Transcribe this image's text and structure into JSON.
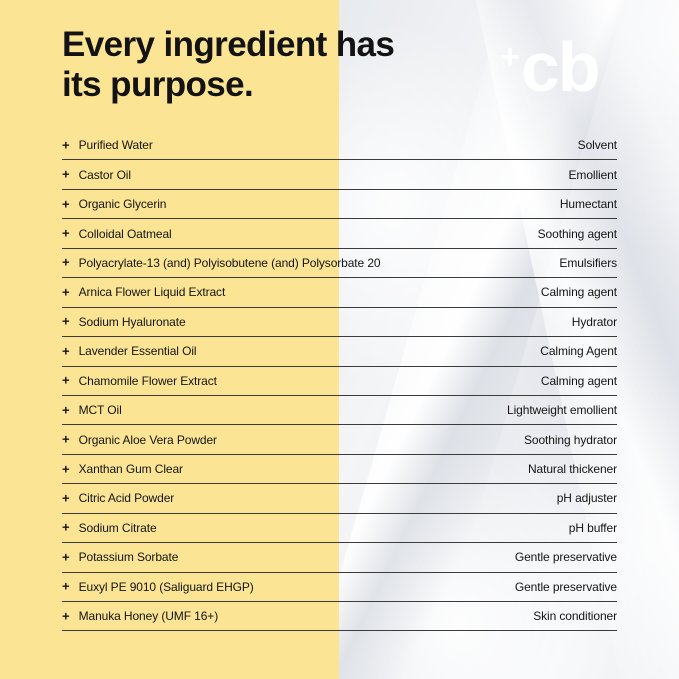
{
  "header": {
    "title_line1": "Every ingredient has",
    "title_line2": "its purpose.",
    "logo_plus": "+",
    "logo_text": "cb"
  },
  "colors": {
    "accent_yellow": "#FBE494",
    "text": "#141414",
    "divider": "#3B3B3B",
    "background_right": "#EDEFF2",
    "logo": "#FFFFFF"
  },
  "table": {
    "row_marker": "+",
    "rows": [
      {
        "ingredient": "Purified Water",
        "purpose": "Solvent"
      },
      {
        "ingredient": "Castor Oil",
        "purpose": "Emollient"
      },
      {
        "ingredient": "Organic Glycerin",
        "purpose": "Humectant"
      },
      {
        "ingredient": "Colloidal Oatmeal",
        "purpose": "Soothing agent"
      },
      {
        "ingredient": "Polyacrylate-13 (and) Polyisobutene (and) Polysorbate 20",
        "purpose": "Emulsifiers"
      },
      {
        "ingredient": "Arnica Flower Liquid Extract",
        "purpose": "Calming agent"
      },
      {
        "ingredient": "Sodium Hyaluronate",
        "purpose": "Hydrator"
      },
      {
        "ingredient": "Lavender Essential Oil",
        "purpose": "Calming Agent"
      },
      {
        "ingredient": "Chamomile Flower Extract",
        "purpose": "Calming agent"
      },
      {
        "ingredient": "MCT Oil",
        "purpose": "Lightweight emollient"
      },
      {
        "ingredient": "Organic Aloe Vera Powder",
        "purpose": "Soothing hydrator"
      },
      {
        "ingredient": "Xanthan Gum Clear",
        "purpose": "Natural thickener"
      },
      {
        "ingredient": "Citric Acid Powder",
        "purpose": "pH adjuster"
      },
      {
        "ingredient": "Sodium Citrate",
        "purpose": "pH buffer"
      },
      {
        "ingredient": "Potassium Sorbate",
        "purpose": "Gentle preservative"
      },
      {
        "ingredient": "Euxyl PE 9010 (Saliguard EHGP)",
        "purpose": "Gentle preservative"
      },
      {
        "ingredient": "Manuka Honey (UMF 16+)",
        "purpose": "Skin conditioner"
      }
    ]
  }
}
